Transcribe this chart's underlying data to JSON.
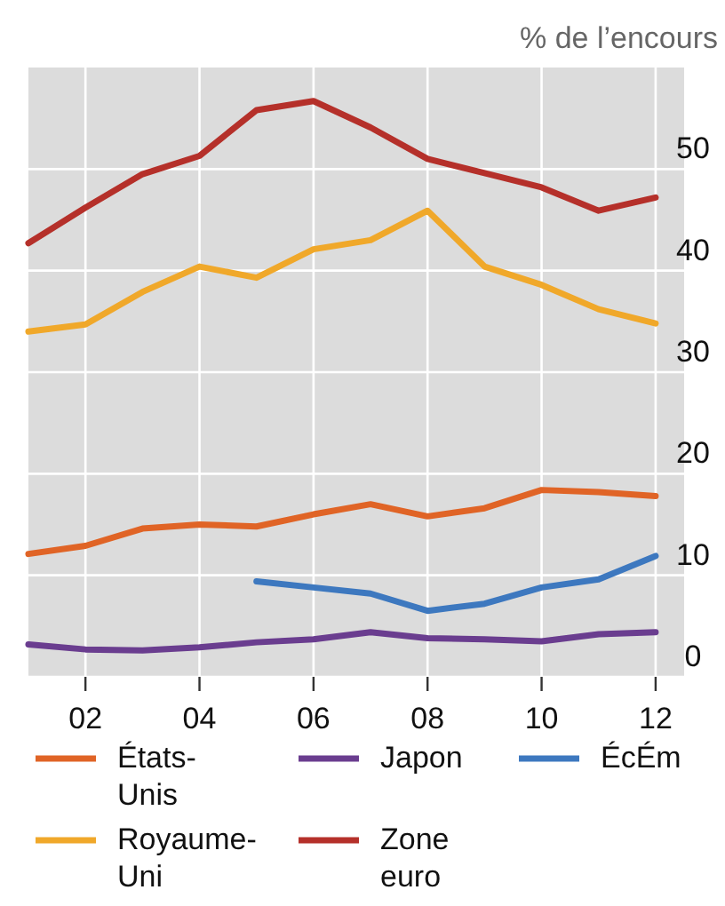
{
  "chart_data": {
    "type": "line",
    "ylabel": "% de l’encours",
    "x": [
      2001,
      2002,
      2003,
      2004,
      2005,
      2006,
      2007,
      2008,
      2009,
      2010,
      2011,
      2012
    ],
    "xlim": [
      2001,
      2012.5
    ],
    "xticks": [
      {
        "value": 2002,
        "label": "02"
      },
      {
        "value": 2004,
        "label": "04"
      },
      {
        "value": 2006,
        "label": "06"
      },
      {
        "value": 2008,
        "label": "08"
      },
      {
        "value": 2010,
        "label": "10"
      },
      {
        "value": 2012,
        "label": "12"
      }
    ],
    "ylim": [
      0,
      60
    ],
    "yticks": [
      0,
      10,
      20,
      30,
      40,
      50
    ],
    "grid": true,
    "legend": "bottom",
    "line_style": "solid",
    "series": [
      {
        "name": "États-Unis",
        "color": "#e06426",
        "values": [
          12.1,
          12.9,
          14.6,
          15.0,
          14.8,
          16.0,
          17.0,
          15.8,
          16.6,
          18.4,
          18.2,
          17.8
        ]
      },
      {
        "name": "Japon",
        "color": "#6a3d8f",
        "values": [
          3.2,
          2.7,
          2.6,
          2.9,
          3.4,
          3.7,
          4.4,
          3.8,
          3.7,
          3.5,
          4.2,
          4.4
        ]
      },
      {
        "name": "ÉcÉm",
        "color": "#3d78bf",
        "values": [
          null,
          null,
          null,
          null,
          9.4,
          8.8,
          8.2,
          6.5,
          7.2,
          8.8,
          9.6,
          11.9
        ]
      },
      {
        "name": "Royaume-Uni",
        "color": "#f0a82a",
        "values": [
          34.0,
          34.7,
          37.9,
          40.4,
          39.3,
          42.1,
          43.0,
          45.9,
          40.4,
          38.6,
          36.2,
          34.8
        ]
      },
      {
        "name": "Zone euro",
        "color": "#b5302a",
        "values": [
          42.7,
          46.2,
          49.5,
          51.3,
          55.8,
          56.7,
          54.1,
          51.0,
          49.6,
          48.2,
          45.9,
          47.2
        ]
      }
    ]
  }
}
